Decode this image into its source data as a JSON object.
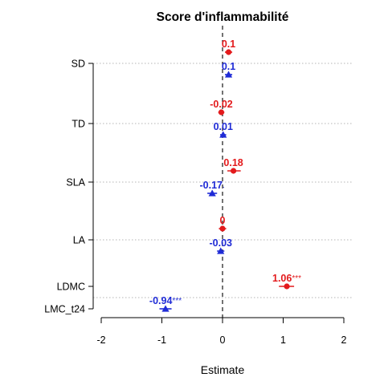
{
  "chart_data": {
    "type": "scatter",
    "title": "Score d'inflammabilité",
    "xlabel": "Estimate",
    "ylabel": "",
    "xlim": [
      -2,
      2
    ],
    "xticks": [
      "-2",
      "-1",
      "0",
      "1",
      "2"
    ],
    "zero_line": true,
    "grid": "horizontal dotted",
    "series_colors": {
      "red": "#e31a1c",
      "blue": "#1f2bd6"
    },
    "rows": [
      {
        "label": "SD",
        "points": [
          {
            "color": "red",
            "marker": "circle",
            "estimate": 0.1,
            "ci": [
              0.04,
              0.16
            ],
            "text": "0.1",
            "sig": ""
          },
          {
            "color": "blue",
            "marker": "triangle",
            "estimate": 0.1,
            "ci": [
              0.04,
              0.16
            ],
            "text": "0.1",
            "sig": ""
          }
        ]
      },
      {
        "label": "TD",
        "points": [
          {
            "color": "red",
            "marker": "circle",
            "estimate": -0.02,
            "ci": [
              -0.07,
              0.03
            ],
            "text": "-0.02",
            "sig": ""
          },
          {
            "color": "blue",
            "marker": "triangle",
            "estimate": 0.01,
            "ci": [
              -0.04,
              0.06
            ],
            "text": "0.01",
            "sig": ""
          }
        ]
      },
      {
        "label": "SLA",
        "points": [
          {
            "color": "red",
            "marker": "circle",
            "estimate": 0.18,
            "ci": [
              0.08,
              0.3
            ],
            "text": "0.18",
            "sig": ""
          },
          {
            "color": "blue",
            "marker": "triangle",
            "estimate": -0.17,
            "ci": [
              -0.25,
              -0.09
            ],
            "text": "-0.17",
            "sig": "."
          }
        ]
      },
      {
        "label": "LA",
        "points": [
          {
            "color": "red",
            "marker": "circle",
            "estimate": 0.0,
            "ci": [
              -0.06,
              0.06
            ],
            "text": "0",
            "sig": ""
          },
          {
            "color": "blue",
            "marker": "triangle",
            "estimate": -0.03,
            "ci": [
              -0.09,
              0.03
            ],
            "text": "-0.03",
            "sig": ""
          }
        ]
      },
      {
        "label": "LDMC",
        "points": [
          {
            "color": "red",
            "marker": "circle",
            "estimate": 1.06,
            "ci": [
              0.93,
              1.18
            ],
            "text": "1.06",
            "sig": "***"
          }
        ]
      },
      {
        "label": "LMC_t24",
        "points": [
          {
            "color": "blue",
            "marker": "triangle",
            "estimate": -0.94,
            "ci": [
              -1.04,
              -0.84
            ],
            "text": "-0.94",
            "sig": "***"
          }
        ]
      }
    ]
  }
}
